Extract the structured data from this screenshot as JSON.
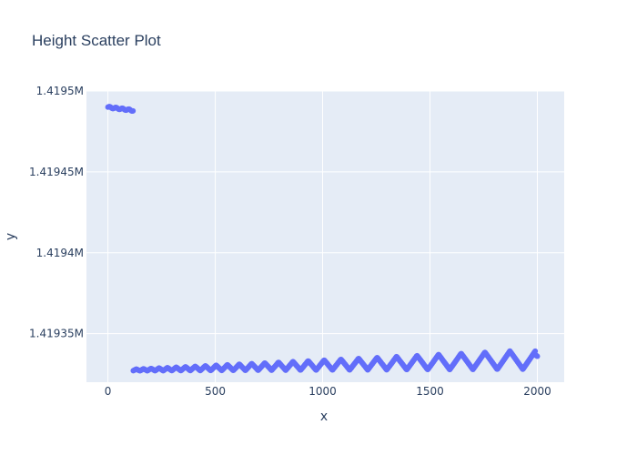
{
  "chart_data": {
    "type": "scatter",
    "title": "Height Scatter Plot",
    "xlabel": "x",
    "ylabel": "y",
    "xlim": [
      -100,
      2125
    ],
    "ylim": [
      1419320,
      1419500
    ],
    "x_ticks": [
      0,
      500,
      1000,
      1500,
      2000
    ],
    "x_tick_labels": [
      "0",
      "500",
      "1000",
      "1500",
      "2000"
    ],
    "y_ticks": [
      1419350,
      1419400,
      1419450,
      1419500
    ],
    "y_tick_labels": [
      "1.41935M",
      "1.4194M",
      "1.41945M",
      "1.4195M"
    ],
    "grid": true,
    "legend": "none",
    "colors": {
      "marker": "#636efa",
      "plot_bg": "#e5ecf6",
      "grid": "#ffffff",
      "text": "#2a3f5f"
    },
    "series": [
      {
        "color": "#636efa",
        "segments": [
          {
            "x_start": 0,
            "x_end": 118,
            "y_start": 1419490,
            "y_end": 1419488,
            "wave_amplitude": 0.5,
            "wave_period": 30
          },
          {
            "x_start": 118,
            "x_end": 1990,
            "y_base_start": 1419327,
            "y_base_end": 1419328,
            "amplitude_start": 1,
            "amplitude_end": 12,
            "period_start": 32,
            "period_end": 125
          },
          {
            "x_start": 1990,
            "x_end": 2000,
            "y_start": 1419337,
            "y_end": 1419336
          }
        ]
      }
    ]
  }
}
